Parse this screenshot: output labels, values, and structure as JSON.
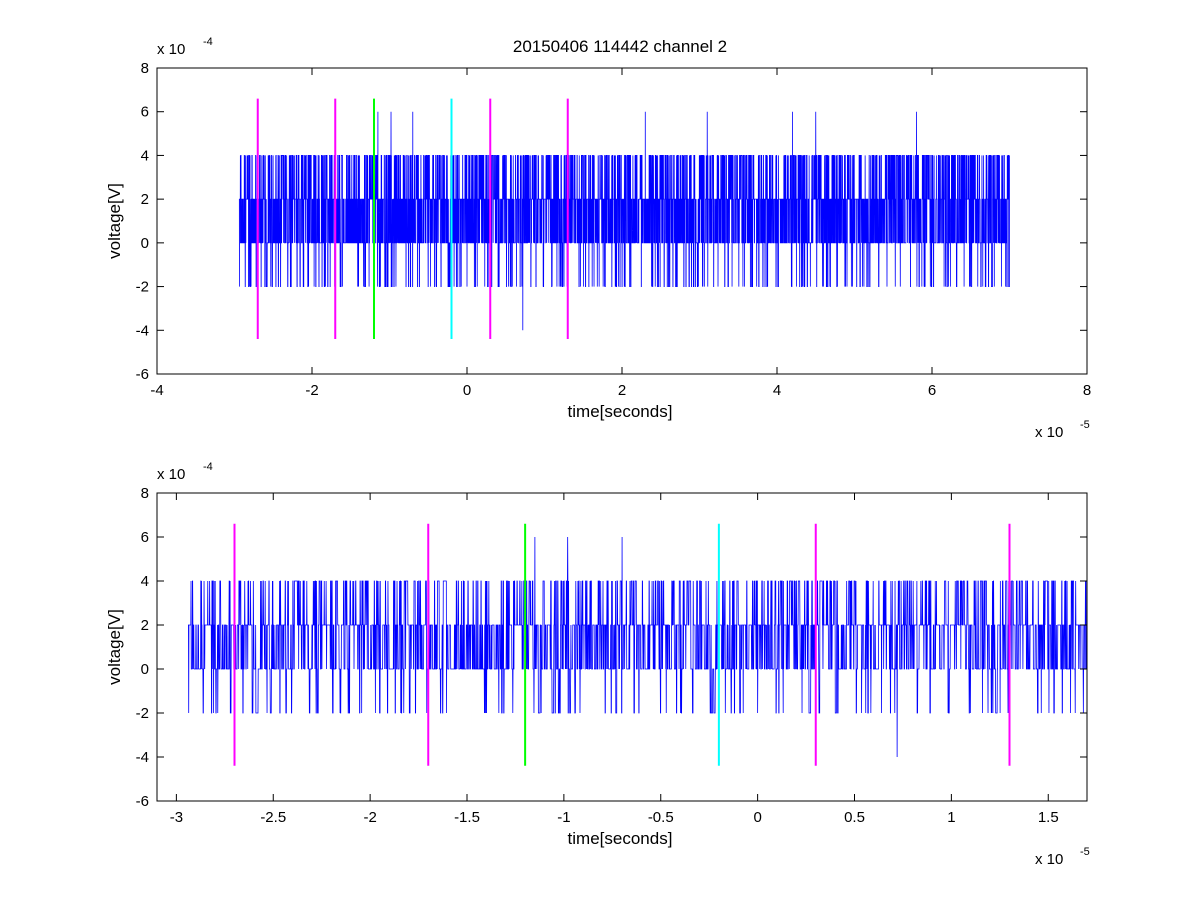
{
  "figure": {
    "title": "20150406 114442 channel 2"
  },
  "chart_data": [
    {
      "type": "line",
      "title": "20150406 114442 channel 2",
      "xlabel": "time[seconds]",
      "ylabel": "voltage[V]",
      "x_exponent_label": "x 10",
      "x_exponent_power": "-5",
      "y_exponent_label": "x 10",
      "y_exponent_power": "-4",
      "xlim": [
        -4e-05,
        8e-05
      ],
      "ylim": [
        -0.0006,
        0.0008
      ],
      "x_ticks": [
        -4e-05,
        -2e-05,
        0,
        2e-05,
        4e-05,
        6e-05,
        8e-05
      ],
      "x_tick_labels": [
        "-4",
        "-2",
        "0",
        "2",
        "4",
        "6",
        "8"
      ],
      "y_ticks": [
        -0.0006,
        -0.0004,
        -0.0002,
        0,
        0.0002,
        0.0004,
        0.0006,
        0.0008
      ],
      "y_tick_labels": [
        "-6",
        "-4",
        "-2",
        "0",
        "2",
        "4",
        "6",
        "8"
      ],
      "grid": false,
      "signal": {
        "name": "",
        "color": "#0000ff",
        "x_start": -2.94e-05,
        "x_end": 7e-05,
        "quantum": 0.0002,
        "seed": 20150406,
        "spikes": [
          {
            "x": -1.2e-05,
            "y": 0.0006
          },
          {
            "x": -1.15e-05,
            "y": 0.0006
          },
          {
            "x": -9.8e-06,
            "y": 0.0006
          },
          {
            "x": -7e-06,
            "y": 0.0006
          },
          {
            "x": 7.2e-06,
            "y": -0.0004
          },
          {
            "x": 2.3e-05,
            "y": 0.0006
          },
          {
            "x": 3.1e-05,
            "y": 0.0006
          },
          {
            "x": 4.2e-05,
            "y": 0.0006
          },
          {
            "x": 4.5e-05,
            "y": 0.0006
          },
          {
            "x": 5.8e-05,
            "y": 0.0006
          },
          {
            "x": 6.95e-05,
            "y": -0.0002
          }
        ]
      },
      "markers": [
        {
          "x": -2.7e-05,
          "color": "#ff00ff"
        },
        {
          "x": -1.7e-05,
          "color": "#ff00ff"
        },
        {
          "x": -1.2e-05,
          "color": "#00ff00"
        },
        {
          "x": -2e-06,
          "color": "#00ffff"
        },
        {
          "x": 3e-06,
          "color": "#ff00ff"
        },
        {
          "x": 1.3e-05,
          "color": "#ff00ff"
        }
      ],
      "marker_ylim": [
        -0.00044,
        0.00066
      ]
    },
    {
      "type": "line",
      "title": "",
      "xlabel": "time[seconds]",
      "ylabel": "voltage[V]",
      "x_exponent_label": "x 10",
      "x_exponent_power": "-5",
      "y_exponent_label": "x 10",
      "y_exponent_power": "-4",
      "xlim": [
        -3.1e-05,
        1.7e-05
      ],
      "ylim": [
        -0.0006,
        0.0008
      ],
      "x_ticks": [
        -3e-05,
        -2.5e-05,
        -2e-05,
        -1.5e-05,
        -1e-05,
        -5e-06,
        0,
        5e-06,
        1e-05,
        1.5e-05
      ],
      "x_tick_labels": [
        "-3",
        "-2.5",
        "-2",
        "-1.5",
        "-1",
        "-0.5",
        "0",
        "0.5",
        "1",
        "1.5"
      ],
      "y_ticks": [
        -0.0006,
        -0.0004,
        -0.0002,
        0,
        0.0002,
        0.0004,
        0.0006,
        0.0008
      ],
      "y_tick_labels": [
        "-6",
        "-4",
        "-2",
        "0",
        "2",
        "4",
        "6",
        "8"
      ],
      "grid": false,
      "signal": {
        "name": "",
        "color": "#0000ff",
        "x_start": -2.94e-05,
        "x_end": 1.7e-05,
        "quantum": 0.0002,
        "seed": 20150406,
        "spikes": [
          {
            "x": -1.2e-05,
            "y": 0.0006
          },
          {
            "x": -1.15e-05,
            "y": 0.0006
          },
          {
            "x": -9.8e-06,
            "y": 0.0006
          },
          {
            "x": -7e-06,
            "y": 0.0006
          },
          {
            "x": 7.2e-06,
            "y": -0.0004
          }
        ]
      },
      "markers": [
        {
          "x": -2.7e-05,
          "color": "#ff00ff"
        },
        {
          "x": -1.7e-05,
          "color": "#ff00ff"
        },
        {
          "x": -1.2e-05,
          "color": "#00ff00"
        },
        {
          "x": -2e-06,
          "color": "#00ffff"
        },
        {
          "x": 3e-06,
          "color": "#ff00ff"
        },
        {
          "x": 1.3e-05,
          "color": "#ff00ff"
        }
      ],
      "marker_ylim": [
        -0.00044,
        0.00066
      ]
    }
  ]
}
